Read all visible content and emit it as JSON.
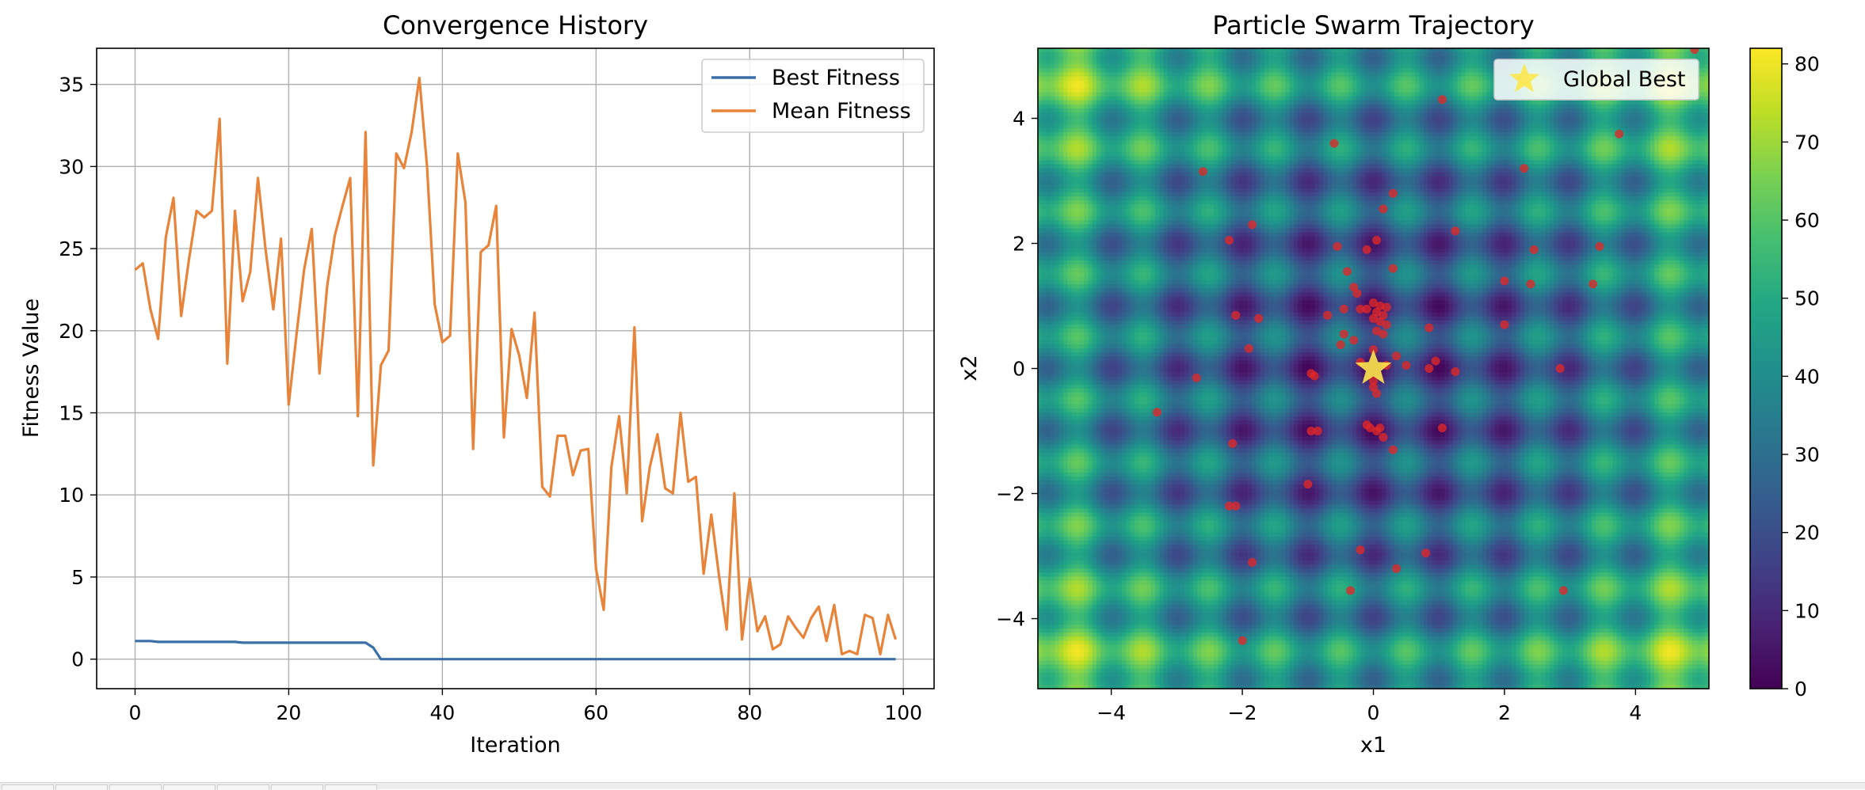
{
  "chart_data": [
    {
      "type": "line",
      "title": "Convergence History",
      "xlabel": "Iteration",
      "ylabel": "Fitness Value",
      "xlim": [
        -5,
        104
      ],
      "ylim": [
        -1.8,
        37.2
      ],
      "xticks": [
        0,
        20,
        40,
        60,
        80,
        100
      ],
      "xtick_labels": [
        "0",
        "20",
        "40",
        "60",
        "80",
        "100"
      ],
      "yticks": [
        0,
        5,
        10,
        15,
        20,
        25,
        30,
        35
      ],
      "ytick_labels": [
        "0",
        "5",
        "10",
        "15",
        "20",
        "25",
        "30",
        "35"
      ],
      "grid": true,
      "legend_position": "top-right",
      "series": [
        {
          "name": "Best Fitness",
          "color": "#3a6fa8",
          "values": [
            1.1,
            1.1,
            1.1,
            1.05,
            1.05,
            1.05,
            1.05,
            1.05,
            1.05,
            1.05,
            1.05,
            1.05,
            1.05,
            1.05,
            1.0,
            1.0,
            1.0,
            1.0,
            1.0,
            1.0,
            1.0,
            1.0,
            1.0,
            1.0,
            1.0,
            1.0,
            1.0,
            1.0,
            1.0,
            1.0,
            1.0,
            0.7,
            0.0,
            0.0,
            0.0,
            0.0,
            0.0,
            0.0,
            0.0,
            0.0,
            0.0,
            0.0,
            0.0,
            0.0,
            0.0,
            0.0,
            0.0,
            0.0,
            0.0,
            0.0,
            0.0,
            0.0,
            0.0,
            0.0,
            0.0,
            0.0,
            0.0,
            0.0,
            0.0,
            0.0,
            0.0,
            0.0,
            0.0,
            0.0,
            0.0,
            0.0,
            0.0,
            0.0,
            0.0,
            0.0,
            0.0,
            0.0,
            0.0,
            0.0,
            0.0,
            0.0,
            0.0,
            0.0,
            0.0,
            0.0,
            0.0,
            0.0,
            0.0,
            0.0,
            0.0,
            0.0,
            0.0,
            0.0,
            0.0,
            0.0,
            0.0,
            0.0,
            0.0,
            0.0,
            0.0,
            0.0,
            0.0,
            0.0,
            0.0,
            0.0
          ]
        },
        {
          "name": "Mean Fitness",
          "color": "#e8843a",
          "values": [
            23.7,
            24.1,
            21.3,
            19.5,
            25.7,
            28.1,
            20.9,
            24.3,
            27.3,
            26.9,
            27.3,
            32.9,
            18.0,
            27.3,
            21.8,
            23.6,
            29.3,
            24.9,
            21.3,
            25.6,
            15.5,
            19.7,
            23.7,
            26.2,
            17.4,
            22.7,
            25.8,
            27.6,
            29.3,
            14.8,
            32.1,
            11.8,
            17.9,
            18.8,
            30.8,
            29.9,
            32.1,
            35.4,
            30.0,
            21.6,
            19.3,
            19.7,
            30.8,
            27.8,
            12.8,
            24.8,
            25.2,
            27.6,
            13.5,
            20.1,
            18.5,
            15.9,
            21.1,
            10.5,
            9.9,
            13.6,
            13.6,
            11.2,
            12.7,
            12.8,
            5.5,
            3.0,
            11.7,
            14.8,
            10.1,
            20.2,
            8.4,
            11.7,
            13.7,
            10.4,
            10.1,
            15.0,
            10.8,
            11.1,
            5.2,
            8.8,
            5.1,
            1.8,
            10.1,
            1.2,
            4.9,
            1.7,
            2.6,
            0.6,
            0.9,
            2.6,
            1.9,
            1.3,
            2.5,
            3.2,
            1.1,
            3.3,
            0.3,
            0.5,
            0.3,
            2.7,
            2.5,
            0.3,
            2.7,
            1.2
          ]
        }
      ]
    },
    {
      "type": "heatmap",
      "title": "Particle Swarm Trajectory",
      "xlabel": "x1",
      "ylabel": "x2",
      "xlim": [
        -5.12,
        5.12
      ],
      "ylim": [
        -5.12,
        5.12
      ],
      "xticks": [
        -4,
        -2,
        0,
        2,
        4
      ],
      "xtick_labels": [
        "−4",
        "−2",
        "0",
        "2",
        "4"
      ],
      "yticks": [
        -4,
        -2,
        0,
        2,
        4
      ],
      "ytick_labels": [
        "−4",
        "−2",
        "0",
        "2",
        "4"
      ],
      "function": "rastrigin",
      "colormap": "viridis",
      "colorbar": {
        "range": [
          0,
          82
        ],
        "ticks": [
          0,
          10,
          20,
          30,
          40,
          50,
          60,
          70,
          80
        ],
        "tick_labels": [
          "0",
          "10",
          "20",
          "30",
          "40",
          "50",
          "60",
          "70",
          "80"
        ]
      },
      "legend_position": "top-right",
      "global_best": {
        "name": "Global Best",
        "x": 0.0,
        "y": 0.0,
        "color": "#fde74c"
      },
      "particle_color": "#e02828",
      "particles": [
        [
          1.05,
          4.3
        ],
        [
          -0.6,
          3.6
        ],
        [
          3.75,
          3.75
        ],
        [
          4.9,
          5.1
        ],
        [
          -2.6,
          3.15
        ],
        [
          0.3,
          2.8
        ],
        [
          2.3,
          3.2
        ],
        [
          -1.85,
          2.3
        ],
        [
          0.15,
          2.55
        ],
        [
          -2.2,
          2.05
        ],
        [
          -0.55,
          1.95
        ],
        [
          -0.1,
          1.9
        ],
        [
          0.05,
          2.05
        ],
        [
          1.25,
          2.2
        ],
        [
          2.45,
          1.9
        ],
        [
          3.45,
          1.95
        ],
        [
          -0.4,
          1.55
        ],
        [
          0.3,
          1.6
        ],
        [
          2.0,
          1.4
        ],
        [
          2.4,
          1.35
        ],
        [
          3.35,
          1.35
        ],
        [
          -0.3,
          1.3
        ],
        [
          -0.25,
          1.2
        ],
        [
          0.0,
          1.05
        ],
        [
          0.1,
          1.0
        ],
        [
          -0.1,
          0.95
        ],
        [
          0.2,
          0.98
        ],
        [
          -0.2,
          0.95
        ],
        [
          0.05,
          0.9
        ],
        [
          0.15,
          0.85
        ],
        [
          0.0,
          0.8
        ],
        [
          0.1,
          0.75
        ],
        [
          0.2,
          0.7
        ],
        [
          0.05,
          0.6
        ],
        [
          0.15,
          0.55
        ],
        [
          -0.45,
          0.95
        ],
        [
          -0.7,
          0.85
        ],
        [
          -2.1,
          0.85
        ],
        [
          -1.75,
          0.8
        ],
        [
          2.0,
          0.7
        ],
        [
          0.85,
          0.65
        ],
        [
          -0.45,
          0.55
        ],
        [
          -0.3,
          0.45
        ],
        [
          -0.5,
          0.38
        ],
        [
          -1.9,
          0.32
        ],
        [
          0.0,
          0.3
        ],
        [
          0.35,
          0.2
        ],
        [
          0.95,
          0.12
        ],
        [
          -0.2,
          0.1
        ],
        [
          0.2,
          0.05
        ],
        [
          0.5,
          0.05
        ],
        [
          0.85,
          0.0
        ],
        [
          1.25,
          -0.05
        ],
        [
          2.85,
          0.0
        ],
        [
          -2.7,
          -0.15
        ],
        [
          -0.95,
          -0.08
        ],
        [
          -0.9,
          -0.12
        ],
        [
          0.0,
          -0.2
        ],
        [
          0.0,
          -0.3
        ],
        [
          0.05,
          -0.4
        ],
        [
          -3.3,
          -0.7
        ],
        [
          -0.1,
          -0.9
        ],
        [
          -0.05,
          -0.95
        ],
        [
          0.05,
          -1.0
        ],
        [
          0.1,
          -0.95
        ],
        [
          -0.95,
          -1.0
        ],
        [
          -0.85,
          -1.0
        ],
        [
          1.05,
          -0.95
        ],
        [
          0.15,
          -1.1
        ],
        [
          0.3,
          -1.3
        ],
        [
          -2.15,
          -1.2
        ],
        [
          -1.0,
          -1.85
        ],
        [
          -2.2,
          -2.2
        ],
        [
          -2.1,
          -2.2
        ],
        [
          -0.2,
          -2.9
        ],
        [
          0.8,
          -2.95
        ],
        [
          -1.85,
          -3.1
        ],
        [
          0.35,
          -3.2
        ],
        [
          -0.35,
          -3.55
        ],
        [
          2.9,
          -3.55
        ],
        [
          -2.0,
          -4.35
        ]
      ]
    }
  ]
}
